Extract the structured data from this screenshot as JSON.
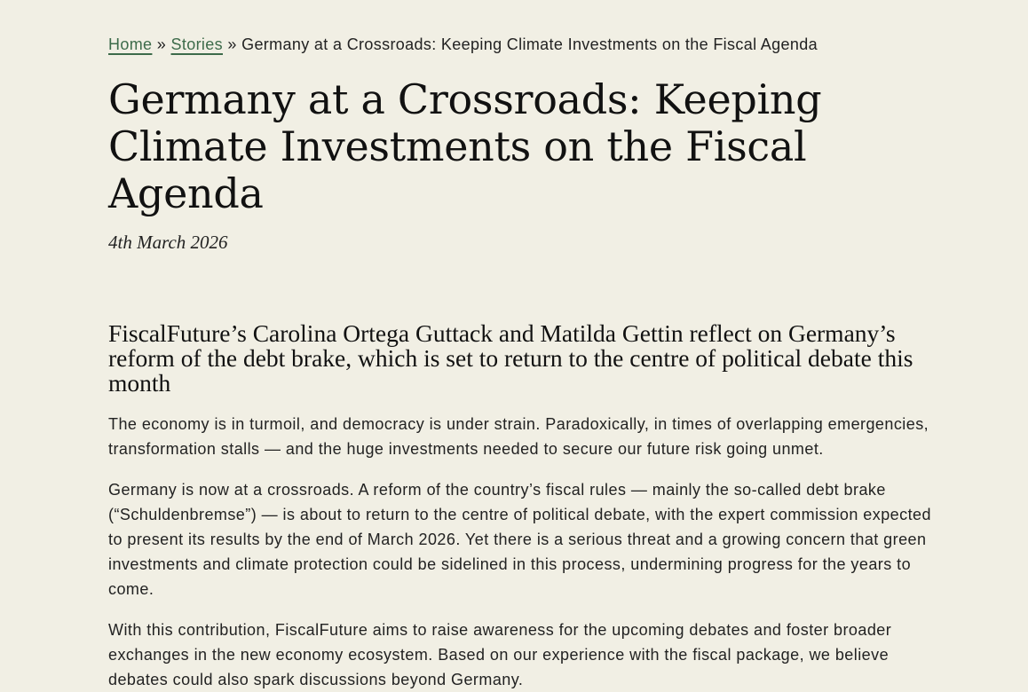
{
  "breadcrumb": {
    "home": "Home",
    "separator": "»",
    "stories": "Stories",
    "current": "Germany at a Crossroads: Keeping Climate Investments on the Fiscal Agenda"
  },
  "article": {
    "title": "Germany at a Crossroads: Keeping Climate Investments on the Fiscal Agenda",
    "date": "4th March 2026",
    "lede": "FiscalFuture’s Carolina Ortega Guttack and Matilda Gettin reflect on Germany’s reform of the debt brake, which is set to return to the centre of political debate this month",
    "paragraphs": [
      "The economy is in turmoil, and democracy is under strain. Paradoxically, in times of overlapping emergencies, transformation stalls — and the huge investments needed to secure our future risk going unmet.",
      "Germany is now at a crossroads. A reform of the country’s fiscal rules — mainly the so-called debt brake (“Schuldenbremse”) — is about to return to the centre of political debate, with the expert commission expected to present its results by the end of March 2026. Yet there is a serious threat and a growing concern that green investments and climate protection could be sidelined in this process, undermining progress for the years to come.",
      "With this contribution, FiscalFuture aims to raise awareness for the upcoming debates and foster broader exchanges in the new economy ecosystem. Based on our experience with the fiscal package, we believe debates could also spark discussions beyond Germany."
    ]
  },
  "colors": {
    "background": "#f1efe4",
    "link": "#3d6b4a",
    "text": "#1b1b1b"
  }
}
